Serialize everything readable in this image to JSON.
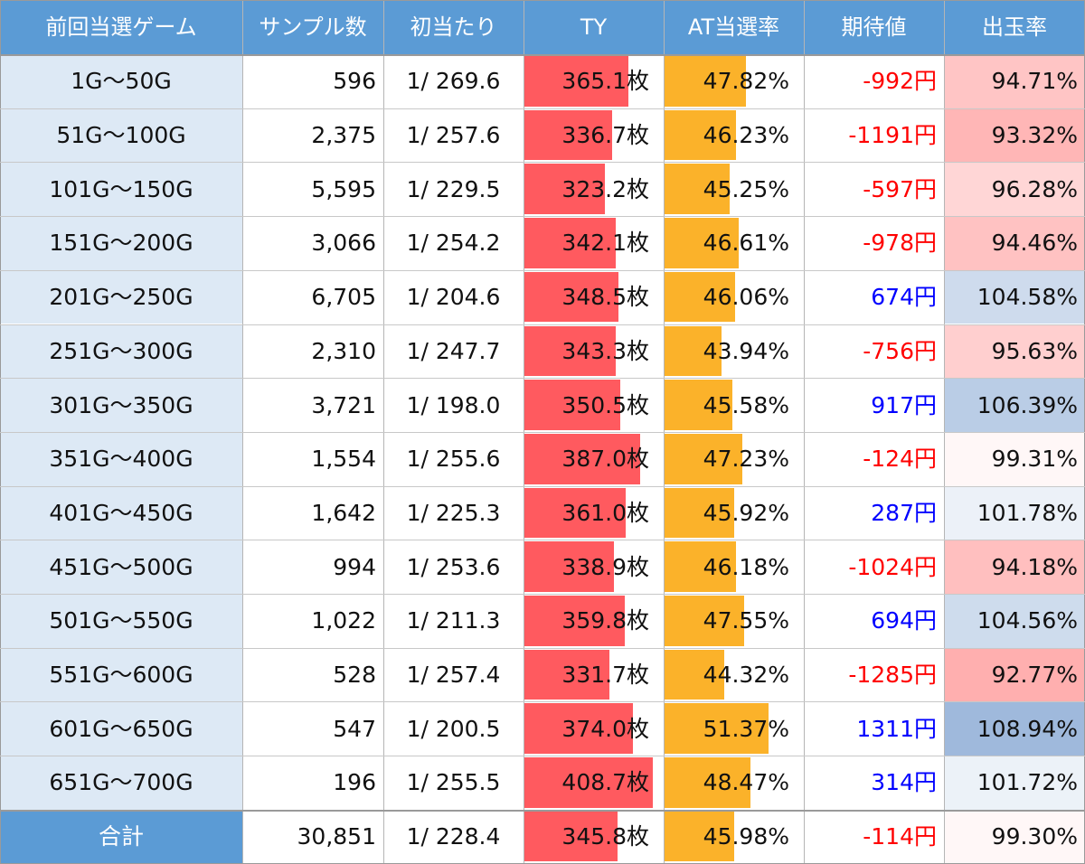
{
  "colors": {
    "header_bg": "#5b9bd5",
    "label_bg": "#dde9f5",
    "ty_bar": "#ff5a5f",
    "at_bar": "#fbb22a",
    "negative_text": "#ff0000",
    "positive_text": "#0000ff"
  },
  "chart_data": {
    "type": "table",
    "headers": [
      "前回当選ゲーム",
      "サンプル数",
      "初当たり",
      "TY",
      "AT当選率",
      "期待値",
      "出玉率"
    ],
    "rows": [
      {
        "range": "1G～50G",
        "samples": "596",
        "first_hit": "1/ 269.6",
        "ty": "365.1枚",
        "ty_value": 365.1,
        "at_rate": "47.82%",
        "at_value": 47.82,
        "ev": "-992円",
        "ev_value": -992,
        "payout": "94.71%",
        "payout_value": 94.71
      },
      {
        "range": "51G～100G",
        "samples": "2,375",
        "first_hit": "1/ 257.6",
        "ty": "336.7枚",
        "ty_value": 336.7,
        "at_rate": "46.23%",
        "at_value": 46.23,
        "ev": "-1191円",
        "ev_value": -1191,
        "payout": "93.32%",
        "payout_value": 93.32
      },
      {
        "range": "101G～150G",
        "samples": "5,595",
        "first_hit": "1/ 229.5",
        "ty": "323.2枚",
        "ty_value": 323.2,
        "at_rate": "45.25%",
        "at_value": 45.25,
        "ev": "-597円",
        "ev_value": -597,
        "payout": "96.28%",
        "payout_value": 96.28
      },
      {
        "range": "151G～200G",
        "samples": "3,066",
        "first_hit": "1/ 254.2",
        "ty": "342.1枚",
        "ty_value": 342.1,
        "at_rate": "46.61%",
        "at_value": 46.61,
        "ev": "-978円",
        "ev_value": -978,
        "payout": "94.46%",
        "payout_value": 94.46
      },
      {
        "range": "201G～250G",
        "samples": "6,705",
        "first_hit": "1/ 204.6",
        "ty": "348.5枚",
        "ty_value": 348.5,
        "at_rate": "46.06%",
        "at_value": 46.06,
        "ev": "674円",
        "ev_value": 674,
        "payout": "104.58%",
        "payout_value": 104.58
      },
      {
        "range": "251G～300G",
        "samples": "2,310",
        "first_hit": "1/ 247.7",
        "ty": "343.3枚",
        "ty_value": 343.3,
        "at_rate": "43.94%",
        "at_value": 43.94,
        "ev": "-756円",
        "ev_value": -756,
        "payout": "95.63%",
        "payout_value": 95.63
      },
      {
        "range": "301G～350G",
        "samples": "3,721",
        "first_hit": "1/ 198.0",
        "ty": "350.5枚",
        "ty_value": 350.5,
        "at_rate": "45.58%",
        "at_value": 45.58,
        "ev": "917円",
        "ev_value": 917,
        "payout": "106.39%",
        "payout_value": 106.39
      },
      {
        "range": "351G～400G",
        "samples": "1,554",
        "first_hit": "1/ 255.6",
        "ty": "387.0枚",
        "ty_value": 387.0,
        "at_rate": "47.23%",
        "at_value": 47.23,
        "ev": "-124円",
        "ev_value": -124,
        "payout": "99.31%",
        "payout_value": 99.31
      },
      {
        "range": "401G～450G",
        "samples": "1,642",
        "first_hit": "1/ 225.3",
        "ty": "361.0枚",
        "ty_value": 361.0,
        "at_rate": "45.92%",
        "at_value": 45.92,
        "ev": "287円",
        "ev_value": 287,
        "payout": "101.78%",
        "payout_value": 101.78
      },
      {
        "range": "451G～500G",
        "samples": "994",
        "first_hit": "1/ 253.6",
        "ty": "338.9枚",
        "ty_value": 338.9,
        "at_rate": "46.18%",
        "at_value": 46.18,
        "ev": "-1024円",
        "ev_value": -1024,
        "payout": "94.18%",
        "payout_value": 94.18
      },
      {
        "range": "501G～550G",
        "samples": "1,022",
        "first_hit": "1/ 211.3",
        "ty": "359.8枚",
        "ty_value": 359.8,
        "at_rate": "47.55%",
        "at_value": 47.55,
        "ev": "694円",
        "ev_value": 694,
        "payout": "104.56%",
        "payout_value": 104.56
      },
      {
        "range": "551G～600G",
        "samples": "528",
        "first_hit": "1/ 257.4",
        "ty": "331.7枚",
        "ty_value": 331.7,
        "at_rate": "44.32%",
        "at_value": 44.32,
        "ev": "-1285円",
        "ev_value": -1285,
        "payout": "92.77%",
        "payout_value": 92.77
      },
      {
        "range": "601G～650G",
        "samples": "547",
        "first_hit": "1/ 200.5",
        "ty": "374.0枚",
        "ty_value": 374.0,
        "at_rate": "51.37%",
        "at_value": 51.37,
        "ev": "1311円",
        "ev_value": 1311,
        "payout": "108.94%",
        "payout_value": 108.94
      },
      {
        "range": "651G～700G",
        "samples": "196",
        "first_hit": "1/ 255.5",
        "ty": "408.7枚",
        "ty_value": 408.7,
        "at_rate": "48.47%",
        "at_value": 48.47,
        "ev": "314円",
        "ev_value": 314,
        "payout": "101.72%",
        "payout_value": 101.72
      }
    ],
    "total": {
      "range": "合計",
      "samples": "30,851",
      "first_hit": "1/ 228.4",
      "ty": "345.8枚",
      "ty_value": 345.8,
      "at_rate": "45.98%",
      "at_value": 45.98,
      "ev": "-114円",
      "ev_value": -114,
      "payout": "99.30%",
      "payout_value": 99.3
    }
  }
}
